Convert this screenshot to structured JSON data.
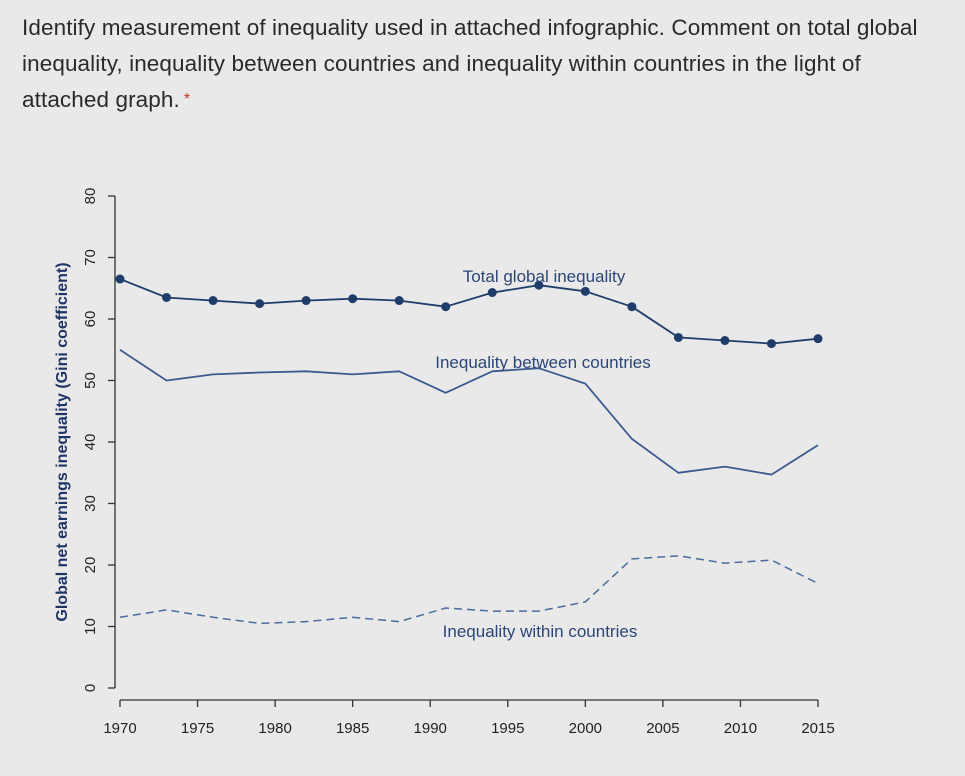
{
  "question": {
    "text": "Identify measurement of inequality used in attached infographic. Comment on total global inequality, inequality between countries and inequality within countries in the light of attached graph.",
    "required_marker": "*"
  },
  "chart_data": {
    "type": "line",
    "ylabel": "Global net earnings inequality (Gini coefficient)",
    "xlabel": "",
    "ylim": [
      0,
      80
    ],
    "xlim": [
      1970,
      2015
    ],
    "yticks": [
      0,
      10,
      20,
      30,
      40,
      50,
      60,
      70,
      80
    ],
    "xticks": [
      1970,
      1975,
      1980,
      1985,
      1990,
      1995,
      2000,
      2005,
      2010,
      2015
    ],
    "grid": false,
    "series": [
      {
        "name": "Total global inequality",
        "style": "solid-markers",
        "color": "#1f3d6b",
        "x": [
          1970,
          1973,
          1976,
          1979,
          1982,
          1985,
          1988,
          1991,
          1994,
          1997,
          2000,
          2003,
          2006,
          2009,
          2012,
          2015
        ],
        "y": [
          66.5,
          63.5,
          63,
          62.5,
          63,
          63.3,
          63,
          62,
          64.3,
          65.5,
          64.5,
          62,
          57,
          56.5,
          56,
          56.8
        ]
      },
      {
        "name": "Inequality between countries",
        "style": "solid",
        "color": "#3b5a8f",
        "x": [
          1970,
          1973,
          1976,
          1979,
          1982,
          1985,
          1988,
          1991,
          1994,
          1997,
          2000,
          2003,
          2006,
          2009,
          2012,
          2015
        ],
        "y": [
          55,
          50,
          51,
          51.3,
          51.5,
          51,
          51.5,
          48,
          51.5,
          52,
          49.5,
          40.5,
          35,
          36,
          34.7,
          39.5
        ]
      },
      {
        "name": "Inequality within countries",
        "style": "dashed",
        "color": "#4a6b9e",
        "x": [
          1970,
          1973,
          1976,
          1979,
          1982,
          1985,
          1988,
          1991,
          1994,
          1997,
          2000,
          2003,
          2006,
          2009,
          2012,
          2015
        ],
        "y": [
          11.5,
          12.7,
          11.5,
          10.5,
          10.8,
          11.5,
          10.8,
          13,
          12.5,
          12.5,
          14,
          21,
          21.5,
          20.3,
          20.8,
          17
        ]
      }
    ]
  }
}
